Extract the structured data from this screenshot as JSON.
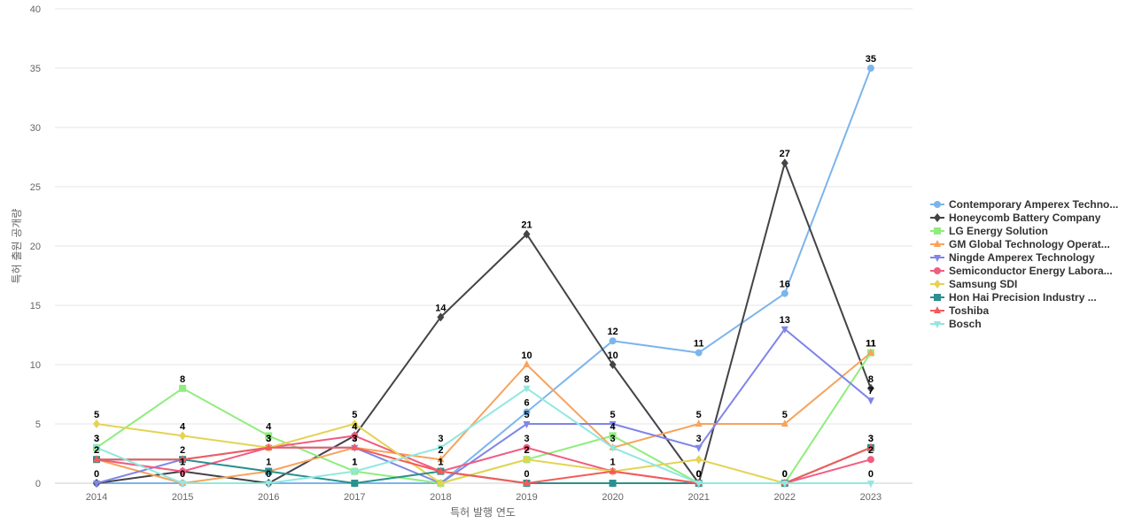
{
  "chart_data": {
    "type": "line",
    "title": "",
    "xlabel": "특허 발행 연도",
    "ylabel": "특허 출원 공개량",
    "ylim": [
      0,
      40
    ],
    "yticks": [
      0,
      5,
      10,
      15,
      20,
      25,
      30,
      35,
      40
    ],
    "x": [
      "2014",
      "2015",
      "2016",
      "2017",
      "2018",
      "2019",
      "2020",
      "2021",
      "2022",
      "2023"
    ],
    "grid": true,
    "legend": "right",
    "series": [
      {
        "name": "Contemporary Amperex Techno...",
        "color": "#7cb5ec",
        "marker": "circle",
        "values": [
          0,
          0,
          0,
          0,
          0,
          6,
          12,
          11,
          16,
          35
        ]
      },
      {
        "name": "Honeycomb Battery Company",
        "color": "#434348",
        "marker": "diamond",
        "values": [
          0,
          1,
          0,
          4,
          14,
          21,
          10,
          0,
          27,
          8
        ]
      },
      {
        "name": "LG Energy Solution",
        "color": "#90ed7d",
        "marker": "square",
        "values": [
          3,
          8,
          4,
          1,
          0,
          2,
          4,
          0,
          0,
          11
        ]
      },
      {
        "name": "GM Global Technology Operat...",
        "color": "#f7a35c",
        "marker": "triangle",
        "values": [
          2,
          0,
          1,
          3,
          2,
          10,
          3,
          5,
          5,
          11
        ]
      },
      {
        "name": "Ningde Amperex Technology",
        "color": "#8085e9",
        "marker": "triangle-down",
        "values": [
          0,
          2,
          3,
          3,
          0,
          5,
          5,
          3,
          13,
          7
        ]
      },
      {
        "name": "Semiconductor Energy Labora...",
        "color": "#f15c80",
        "marker": "circle",
        "values": [
          2,
          1,
          3,
          4,
          1,
          3,
          1,
          0,
          0,
          2
        ]
      },
      {
        "name": "Samsung SDI",
        "color": "#e4d354",
        "marker": "diamond",
        "values": [
          5,
          4,
          3,
          5,
          0,
          2,
          1,
          2,
          0,
          3
        ]
      },
      {
        "name": "Hon Hai Precision Industry ...",
        "color": "#2b908f",
        "marker": "square",
        "values": [
          2,
          2,
          1,
          0,
          1,
          0,
          0,
          0,
          0,
          3
        ]
      },
      {
        "name": "Toshiba",
        "color": "#f45b5b",
        "marker": "triangle",
        "values": [
          2,
          2,
          3,
          3,
          1,
          0,
          1,
          0,
          0,
          3
        ]
      },
      {
        "name": "Bosch",
        "color": "#91e8e1",
        "marker": "triangle-down",
        "values": [
          3,
          0,
          0,
          1,
          3,
          8,
          3,
          0,
          0,
          0
        ]
      }
    ],
    "data_labels_shown": [
      {
        "series": 0,
        "indices": [
          5,
          6,
          7,
          8,
          9
        ]
      },
      {
        "series": 1,
        "indices": [
          1,
          3,
          4,
          5,
          6,
          7,
          8,
          9
        ]
      },
      {
        "series": 2,
        "indices": [
          0,
          1,
          2,
          3,
          5,
          6,
          9
        ]
      },
      {
        "series": 3,
        "indices": [
          0,
          1,
          2,
          3,
          4,
          5,
          6,
          7,
          8,
          9
        ]
      },
      {
        "series": 4,
        "indices": [
          0,
          2,
          3,
          5,
          6,
          7,
          8,
          9
        ]
      },
      {
        "series": 5,
        "indices": [
          1,
          2,
          3,
          5,
          6,
          7,
          8,
          9
        ]
      },
      {
        "series": 6,
        "indices": [
          0,
          1,
          3,
          5
        ]
      },
      {
        "series": 7,
        "indices": [
          1,
          4,
          5,
          9
        ]
      },
      {
        "series": 8,
        "indices": [
          0,
          2,
          3,
          4,
          9
        ]
      },
      {
        "series": 9,
        "indices": [
          0,
          2,
          3,
          4,
          5,
          7,
          8,
          9
        ]
      }
    ]
  }
}
